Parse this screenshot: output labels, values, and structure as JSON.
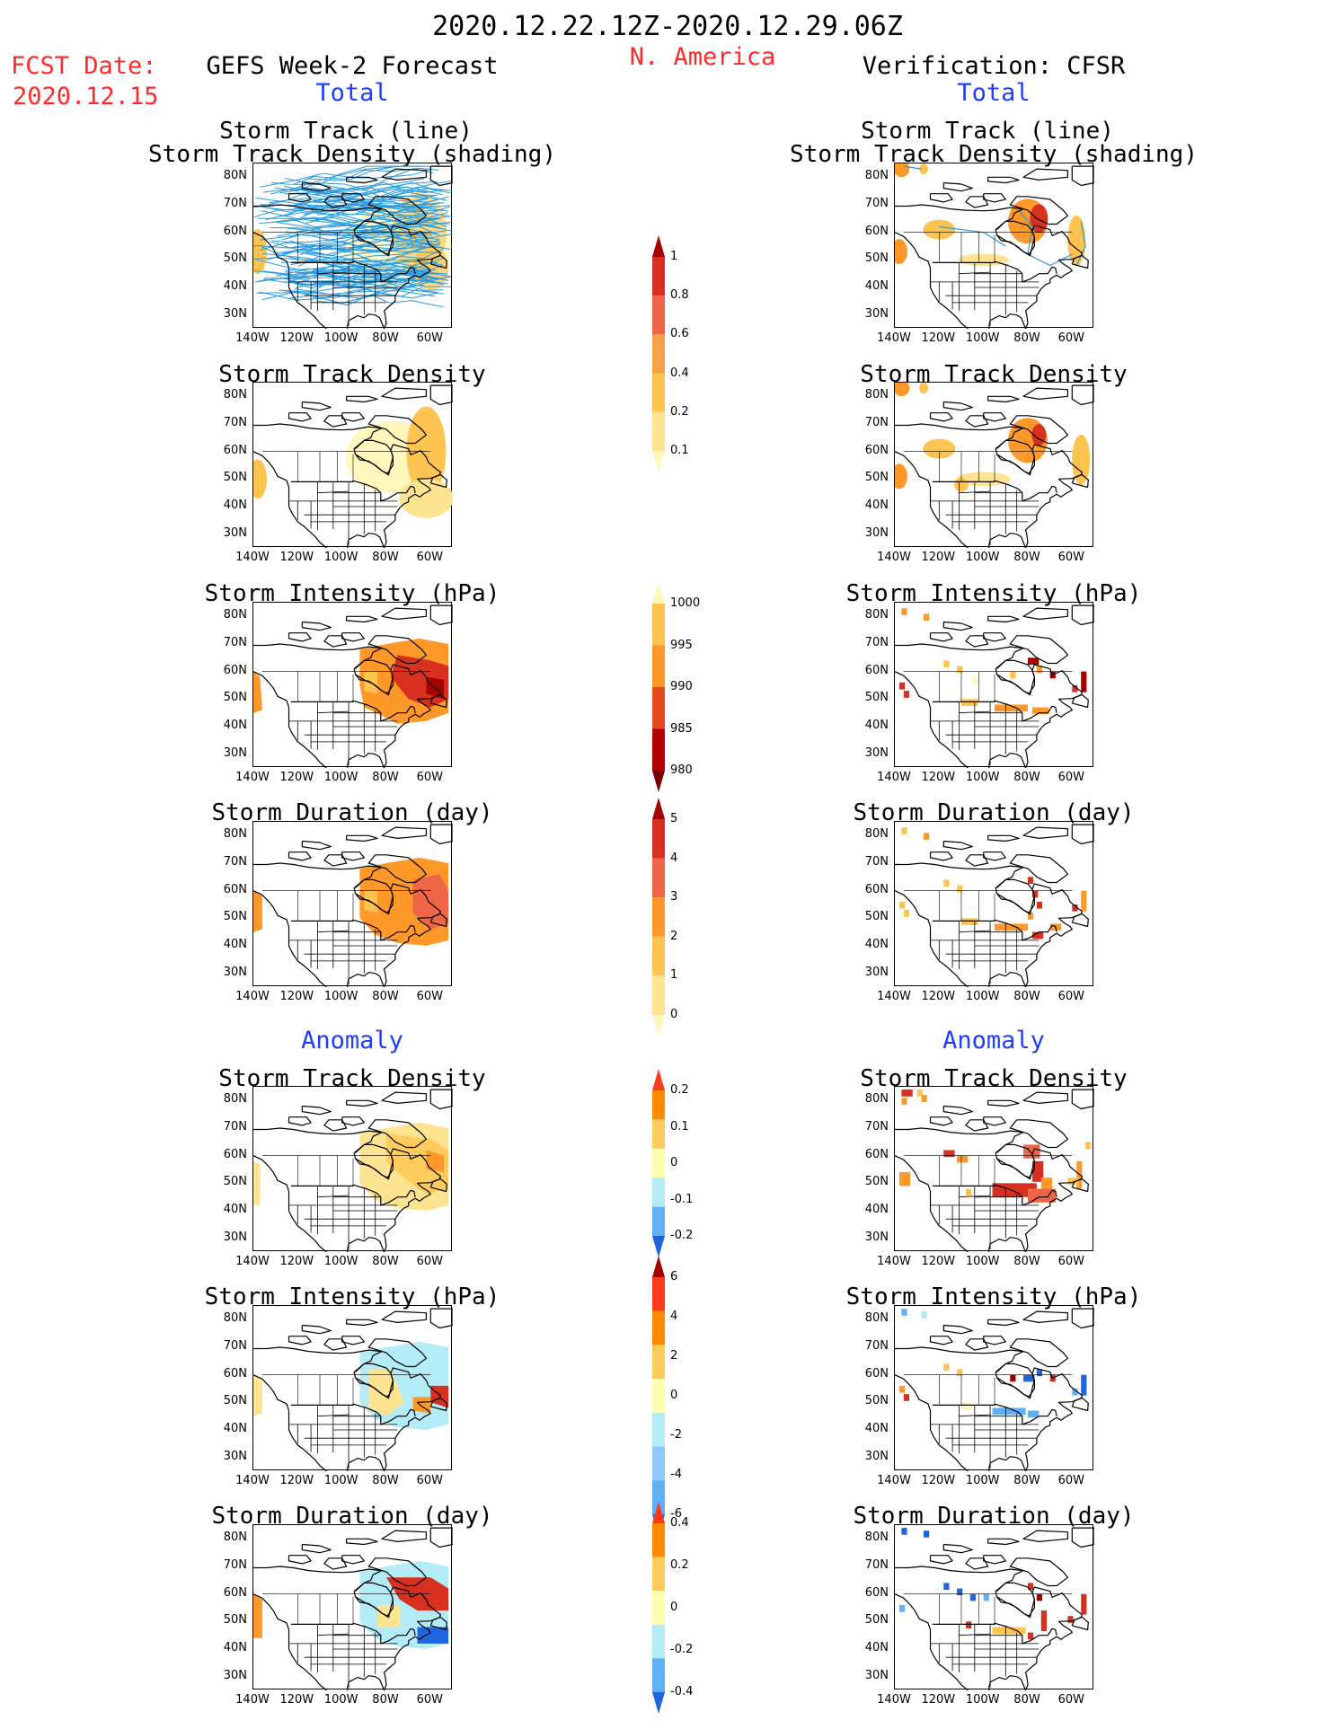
{
  "header": {
    "period": "2020.12.22.12Z-2020.12.29.06Z",
    "region": "N. America",
    "fcst_label": "FCST Date:",
    "fcst_date": "2020.12.15",
    "left_title": "GEFS Week-2 Forecast",
    "right_title": "Verification: CFSR",
    "total_label": "Total",
    "anomaly_label": "Anomaly"
  },
  "panels": {
    "storm_track": [
      "Storm Track (line)",
      "Storm Track Density (shading)"
    ],
    "density": "Storm Track Density",
    "intensity": "Storm Intensity (hPa)",
    "duration": "Storm Duration (day)"
  },
  "axes": {
    "lat_ticks": [
      "80N",
      "70N",
      "60N",
      "50N",
      "40N",
      "30N"
    ],
    "lon_ticks": [
      "140W",
      "120W",
      "100W",
      "80W",
      "60W"
    ]
  },
  "colorbars": [
    {
      "id": "density_total",
      "labels": [
        "1",
        "0.8",
        "0.6",
        "0.4",
        "0.2",
        "0.1"
      ],
      "colors": [
        "#a50000",
        "#d7301f",
        "#ef6548",
        "#f6a14a",
        "#fec44f",
        "#fee391",
        "#fff7bc"
      ]
    },
    {
      "id": "intensity_total",
      "labels": [
        "1000",
        "995",
        "990",
        "985",
        "980"
      ],
      "colors": [
        "#fff7bc",
        "#fec44f",
        "#fe9929",
        "#e34a1f",
        "#b30000",
        "#7f0000"
      ]
    },
    {
      "id": "duration_total",
      "labels": [
        "5",
        "4",
        "3",
        "2",
        "1",
        "0"
      ],
      "colors": [
        "#a50000",
        "#d7301f",
        "#ef6548",
        "#fe9929",
        "#fec44f",
        "#fee391",
        "#fff7bc"
      ]
    },
    {
      "id": "density_anom",
      "labels": [
        "0.2",
        "0.1",
        "0",
        "-0.1",
        "-0.2"
      ],
      "colors": [
        "#ff3b1f",
        "#ff8c00",
        "#fecc5c",
        "#ffffb2",
        "#b3ecf7",
        "#5fb0f5",
        "#1f64e0"
      ]
    },
    {
      "id": "intensity_anom",
      "labels": [
        "6",
        "4",
        "2",
        "0",
        "-2",
        "-4",
        "-6"
      ],
      "colors": [
        "#a50000",
        "#ff3b1f",
        "#ff8c00",
        "#fecc5c",
        "#ffffb2",
        "#b3ecf7",
        "#8ec8ff",
        "#5fb0f5",
        "#1f64e0"
      ]
    },
    {
      "id": "duration_anom",
      "labels": [
        "0.4",
        "0.2",
        "0",
        "-0.2",
        "-0.4"
      ],
      "colors": [
        "#ff3b1f",
        "#ff8c00",
        "#fecc5c",
        "#ffffb2",
        "#b3ecf7",
        "#5fb0f5",
        "#1f64e0"
      ]
    }
  ],
  "colors": {
    "track_line": "#2b9be0",
    "land_outline": "#000000"
  }
}
